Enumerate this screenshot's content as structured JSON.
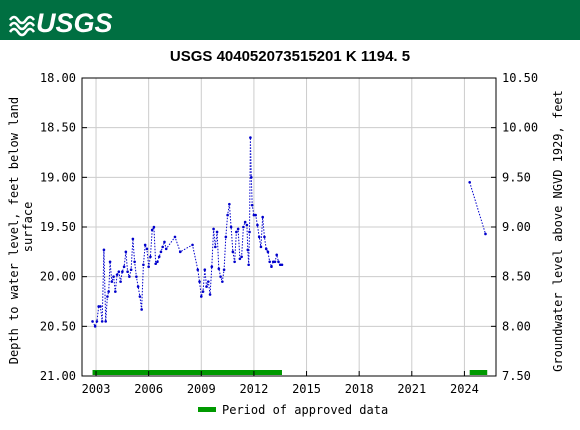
{
  "header": {
    "logo_text": "USGS",
    "brand_color": "#006f41"
  },
  "chart_data": {
    "type": "scatter",
    "title": "USGS 404052073515201 K  1194. 5",
    "ylabel_left": "Depth to water level, feet below land\nsurface",
    "ylabel_right": "Groundwater level above NGVD 1929, feet",
    "xlim": [
      2002.2,
      2025.8
    ],
    "ylim_left": [
      21.0,
      18.0
    ],
    "ylim_right": [
      7.5,
      10.5
    ],
    "x_ticks": [
      "2003",
      "2006",
      "2009",
      "2012",
      "2015",
      "2018",
      "2021",
      "2024"
    ],
    "y_left_ticks": [
      "18.00",
      "18.50",
      "19.00",
      "19.50",
      "20.00",
      "20.50",
      "21.00"
    ],
    "y_right_ticks": [
      "10.50",
      "10.00",
      "9.50",
      "9.00",
      "8.50",
      "8.00",
      "7.50"
    ],
    "grid": true,
    "series_color": "#0000cc",
    "approved_color": "#009900",
    "legend": {
      "label": "Period of approved data",
      "position": "bottom-center"
    },
    "approved_periods": [
      [
        2002.8,
        2013.6
      ],
      [
        2024.3,
        2025.3
      ]
    ],
    "segments": [
      {
        "x": [
          2002.8,
          2002.95,
          2003.05,
          2003.15,
          2003.25,
          2003.35,
          2003.45,
          2003.55,
          2003.65,
          2003.72,
          2003.8,
          2003.9,
          2004.0,
          2004.1,
          2004.2,
          2004.3,
          2004.4,
          2004.5,
          2004.6,
          2004.7,
          2004.8,
          2004.9,
          2005.0,
          2005.1,
          2005.2,
          2005.3,
          2005.4,
          2005.5,
          2005.6,
          2005.7,
          2005.8,
          2005.9,
          2006.0,
          2006.1,
          2006.2,
          2006.3,
          2006.4,
          2006.5,
          2006.6,
          2006.7,
          2006.8,
          2006.9,
          2007.0,
          2007.5,
          2007.8,
          2008.5,
          2008.8,
          2008.9,
          2009.0,
          2009.1,
          2009.2,
          2009.3,
          2009.4,
          2009.5,
          2009.6,
          2009.7,
          2009.8,
          2009.9,
          2010.0,
          2010.1,
          2010.2,
          2010.3,
          2010.4,
          2010.5,
          2010.6,
          2010.7,
          2010.8,
          2010.9,
          2011.0,
          2011.1,
          2011.2,
          2011.3,
          2011.4,
          2011.5,
          2011.6,
          2011.65,
          2011.7,
          2011.75,
          2011.8,
          2011.85,
          2011.9,
          2012.0,
          2012.1,
          2012.2,
          2012.3,
          2012.4,
          2012.5,
          2012.6,
          2012.7,
          2012.8,
          2012.9,
          2013.0,
          2013.1,
          2013.2,
          2013.3,
          2013.4,
          2013.5,
          2013.6
        ],
        "y": [
          20.45,
          20.5,
          20.45,
          20.3,
          20.3,
          20.45,
          19.73,
          20.45,
          20.2,
          20.15,
          19.85,
          20.05,
          20.0,
          20.15,
          19.98,
          19.95,
          20.05,
          19.95,
          19.9,
          19.75,
          19.95,
          20.0,
          19.93,
          19.62,
          19.85,
          20.0,
          20.1,
          20.2,
          20.33,
          19.88,
          19.68,
          19.72,
          19.9,
          19.8,
          19.53,
          19.5,
          19.87,
          19.85,
          19.8,
          19.75,
          19.7,
          19.65,
          19.72,
          19.6,
          19.75,
          19.68,
          19.93,
          20.05,
          20.2,
          20.15,
          19.93,
          20.1,
          20.05,
          20.18,
          19.9,
          19.52,
          19.7,
          19.55,
          19.92,
          20.0,
          20.05,
          19.93,
          19.6,
          19.38,
          19.27,
          19.5,
          19.75,
          19.85,
          19.55,
          19.52,
          19.82,
          19.8,
          19.5,
          19.45,
          19.48,
          19.73,
          19.88,
          19.55,
          18.6,
          19.0,
          19.28,
          19.38,
          19.38,
          19.48,
          19.6,
          19.7,
          19.4,
          19.6,
          19.72,
          19.75,
          19.85,
          19.9,
          19.85,
          19.85,
          19.78,
          19.85,
          19.88,
          19.88
        ]
      },
      {
        "x": [
          2024.3,
          2025.2
        ],
        "y": [
          19.05,
          19.57
        ]
      }
    ]
  }
}
